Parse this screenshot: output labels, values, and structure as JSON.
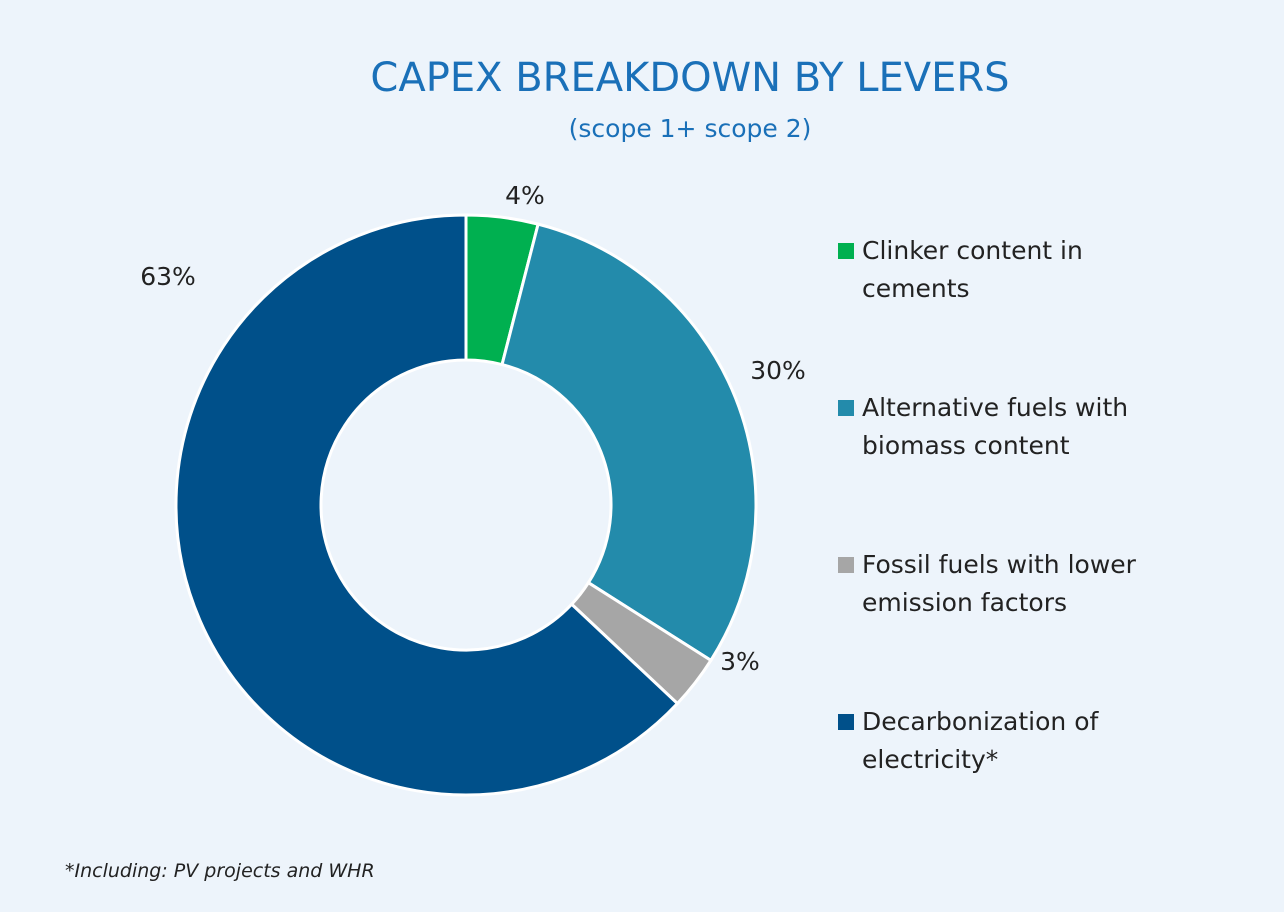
{
  "chart_data": {
    "type": "donut",
    "title": "CAPEX BREAKDOWN BY LEVERS",
    "subtitle": "(scope 1+ scope 2)",
    "categories": [
      "Clinker content in cements",
      "Alternative fuels with biomass content",
      "Fossil fuels with lower emission factors",
      "Decarbonization of electricity*"
    ],
    "values": [
      4,
      30,
      3,
      63
    ],
    "value_labels": [
      "4%",
      "30%",
      "3%",
      "63%"
    ],
    "colors": [
      "#00b050",
      "#238bab",
      "#a6a6a6",
      "#00508a"
    ],
    "legend": "right",
    "footnote": "*Including: PV projects and WHR"
  }
}
